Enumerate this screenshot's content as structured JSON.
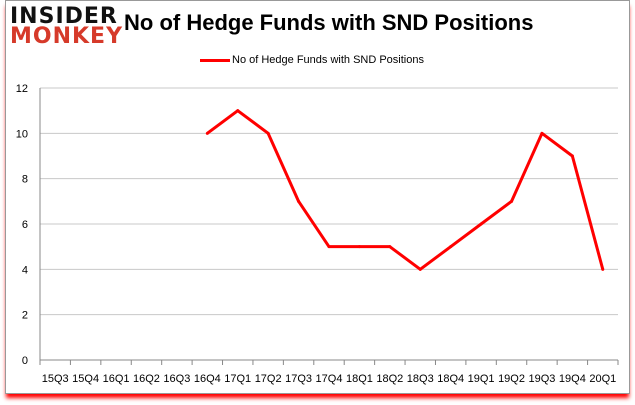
{
  "logo": {
    "line1": "INSIDER",
    "line2": "MONKEY"
  },
  "chart_data": {
    "type": "line",
    "title": "No of Hedge Funds with SND Positions",
    "categories": [
      "15Q3",
      "15Q4",
      "16Q1",
      "16Q2",
      "16Q3",
      "16Q4",
      "17Q1",
      "17Q2",
      "17Q3",
      "17Q4",
      "18Q1",
      "18Q2",
      "18Q3",
      "18Q4",
      "19Q1",
      "19Q2",
      "19Q3",
      "19Q4",
      "20Q1"
    ],
    "series": [
      {
        "name": "No of Hedge Funds with SND Positions",
        "color": "#ff0000",
        "values": [
          null,
          null,
          null,
          null,
          null,
          10,
          11,
          10,
          7,
          5,
          5,
          5,
          4,
          5,
          6,
          7,
          10,
          9,
          4
        ]
      }
    ],
    "ylim": [
      0,
      12
    ],
    "yticks": [
      0,
      2,
      4,
      6,
      8,
      10,
      12
    ],
    "grid": true,
    "legend": "top-center"
  }
}
